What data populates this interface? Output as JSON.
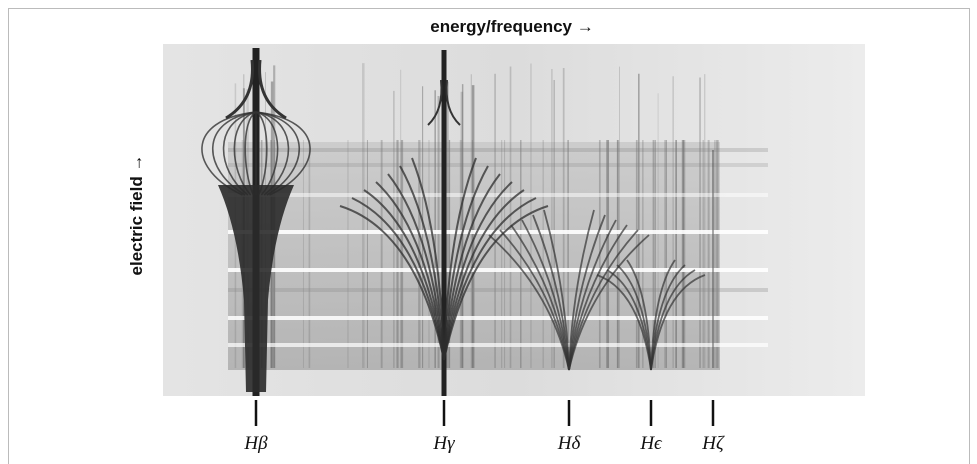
{
  "figure": {
    "x_label": "energy/frequency →",
    "y_label": "electric field →",
    "lines": [
      {
        "label": "Hβ"
      },
      {
        "label": "Hγ"
      },
      {
        "label": "Hδ"
      },
      {
        "label": "Hϵ"
      },
      {
        "label": "Hζ"
      }
    ]
  }
}
